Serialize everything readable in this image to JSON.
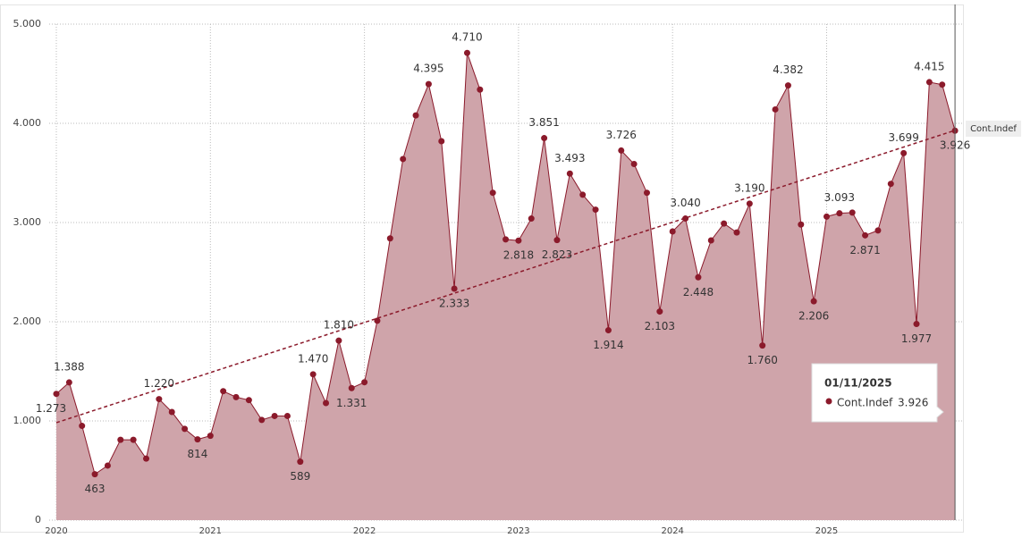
{
  "chart_data": {
    "type": "area",
    "x": [
      "2020-01",
      "2020-02",
      "2020-03",
      "2020-04",
      "2020-05",
      "2020-06",
      "2020-07",
      "2020-08",
      "2020-09",
      "2020-10",
      "2020-11",
      "2020-12",
      "2021-01",
      "2021-02",
      "2021-03",
      "2021-04",
      "2021-05",
      "2021-06",
      "2021-07",
      "2021-08",
      "2021-09",
      "2021-10",
      "2021-11",
      "2021-12",
      "2022-01",
      "2022-02",
      "2022-03",
      "2022-04",
      "2022-05",
      "2022-06",
      "2022-07",
      "2022-08",
      "2022-09",
      "2022-10",
      "2022-11",
      "2022-12",
      "2023-01",
      "2023-02",
      "2023-03",
      "2023-04",
      "2023-05",
      "2023-06",
      "2023-07",
      "2023-08",
      "2023-09",
      "2023-10",
      "2023-11",
      "2023-12",
      "2024-01",
      "2024-02",
      "2024-03",
      "2024-04",
      "2024-05",
      "2024-06",
      "2024-07",
      "2024-08",
      "2024-09",
      "2024-10",
      "2024-11",
      "2024-12",
      "2025-01",
      "2025-02",
      "2025-03",
      "2025-04",
      "2025-05",
      "2025-06",
      "2025-07",
      "2025-08",
      "2025-09",
      "2025-10",
      "2025-11"
    ],
    "series": [
      {
        "name": "Cont.Indef",
        "color": "#8b1a2b",
        "fill": "#cfa4aa",
        "values": [
          1273,
          1388,
          950,
          463,
          550,
          810,
          810,
          620,
          1220,
          1090,
          920,
          814,
          850,
          1300,
          1240,
          1210,
          1010,
          1050,
          1050,
          589,
          1470,
          1180,
          1810,
          1331,
          1390,
          2010,
          2840,
          3640,
          4080,
          4395,
          3820,
          2333,
          4710,
          4340,
          3300,
          2830,
          2818,
          3040,
          3851,
          2823,
          3493,
          3280,
          3130,
          1914,
          3726,
          3590,
          3300,
          2103,
          2910,
          3040,
          2448,
          2820,
          2990,
          2900,
          3190,
          1760,
          4140,
          4382,
          2980,
          2206,
          3060,
          3093,
          3100,
          2871,
          2920,
          3390,
          3699,
          1977,
          4415,
          4390,
          3926
        ],
        "value_labels": [
          "1.273",
          "1.388",
          null,
          "463",
          null,
          null,
          null,
          null,
          "1.220",
          null,
          null,
          "814",
          null,
          null,
          null,
          null,
          null,
          null,
          null,
          "589",
          "1.470",
          null,
          "1.810",
          "1.331",
          null,
          null,
          null,
          null,
          null,
          "4.395",
          null,
          "2.333",
          "4.710",
          null,
          null,
          null,
          "2.818",
          null,
          "3.851",
          "2.823",
          "3.493",
          null,
          null,
          "1.914",
          "3.726",
          null,
          null,
          "2.103",
          null,
          "3.040",
          "2.448",
          null,
          null,
          null,
          "3.190",
          "1.760",
          null,
          "4.382",
          null,
          "2.206",
          null,
          "3.093",
          null,
          "2.871",
          null,
          null,
          "3.699",
          "1.977",
          "4.415",
          null,
          "3.926"
        ]
      }
    ],
    "ylim": [
      0,
      5000
    ],
    "yticks": [
      0,
      {
        "value": 1000,
        "label": "1.000"
      },
      {
        "value": 2000,
        "label": "2.000"
      },
      {
        "value": 3000,
        "label": "3.000"
      },
      {
        "value": 4000,
        "label": "4.000"
      },
      {
        "value": 5000,
        "label": "5.000"
      }
    ],
    "xticks": [
      2020,
      2021,
      2022,
      2023,
      2024,
      2025
    ],
    "grid": true,
    "trendline": true,
    "tooltip": {
      "date": "01/11/2025"
    }
  }
}
